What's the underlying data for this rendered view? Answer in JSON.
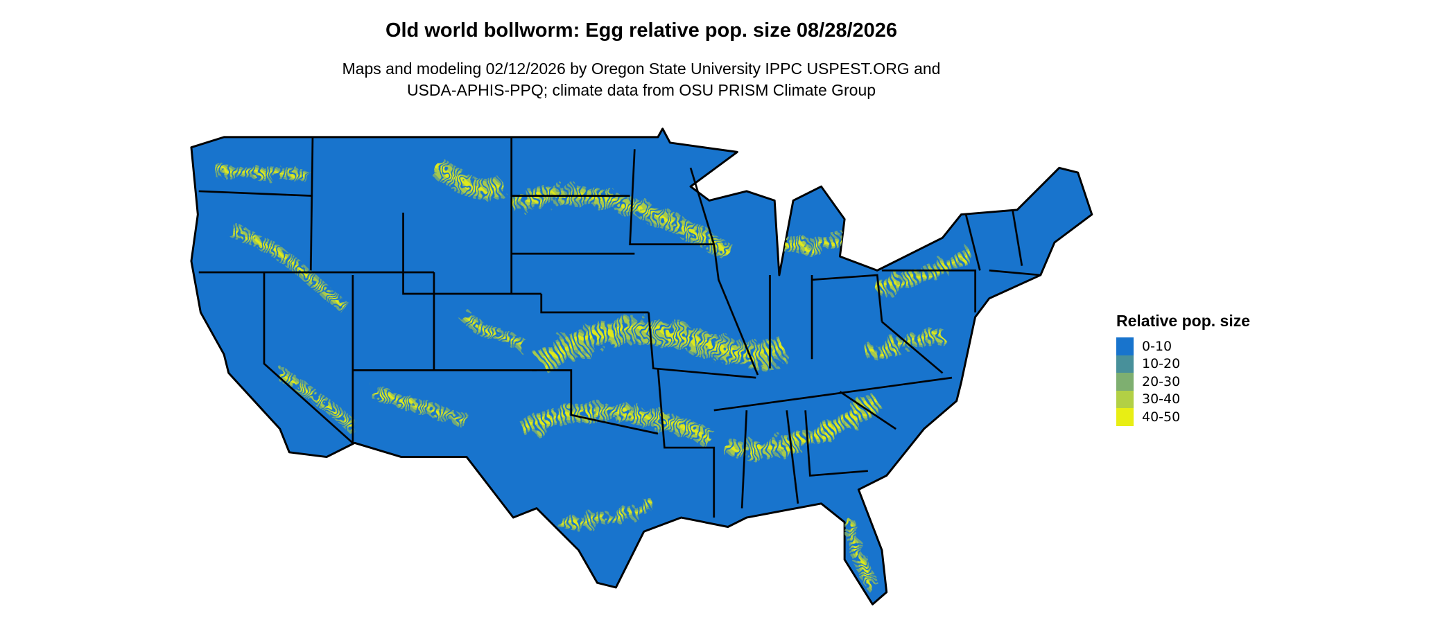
{
  "title": "Old world bollworm: Egg relative pop. size 08/28/2026",
  "subtitle_line1": "Maps and modeling 02/12/2026 by Oregon State University IPPC USPEST.ORG and",
  "subtitle_line2": "USDA-APHIS-PPQ; climate data from OSU PRISM Climate Group",
  "legend": {
    "title": "Relative pop. size",
    "items": [
      {
        "label": "0-10",
        "color": "#1874CD"
      },
      {
        "label": "10-20",
        "color": "#48909A"
      },
      {
        "label": "20-30",
        "color": "#7EAF70"
      },
      {
        "label": "30-40",
        "color": "#B2D045"
      },
      {
        "label": "40-50",
        "color": "#E8EE14"
      }
    ]
  },
  "map": {
    "region": "Contiguous United States",
    "base_color": "#1874CD",
    "border_color": "#000000"
  }
}
